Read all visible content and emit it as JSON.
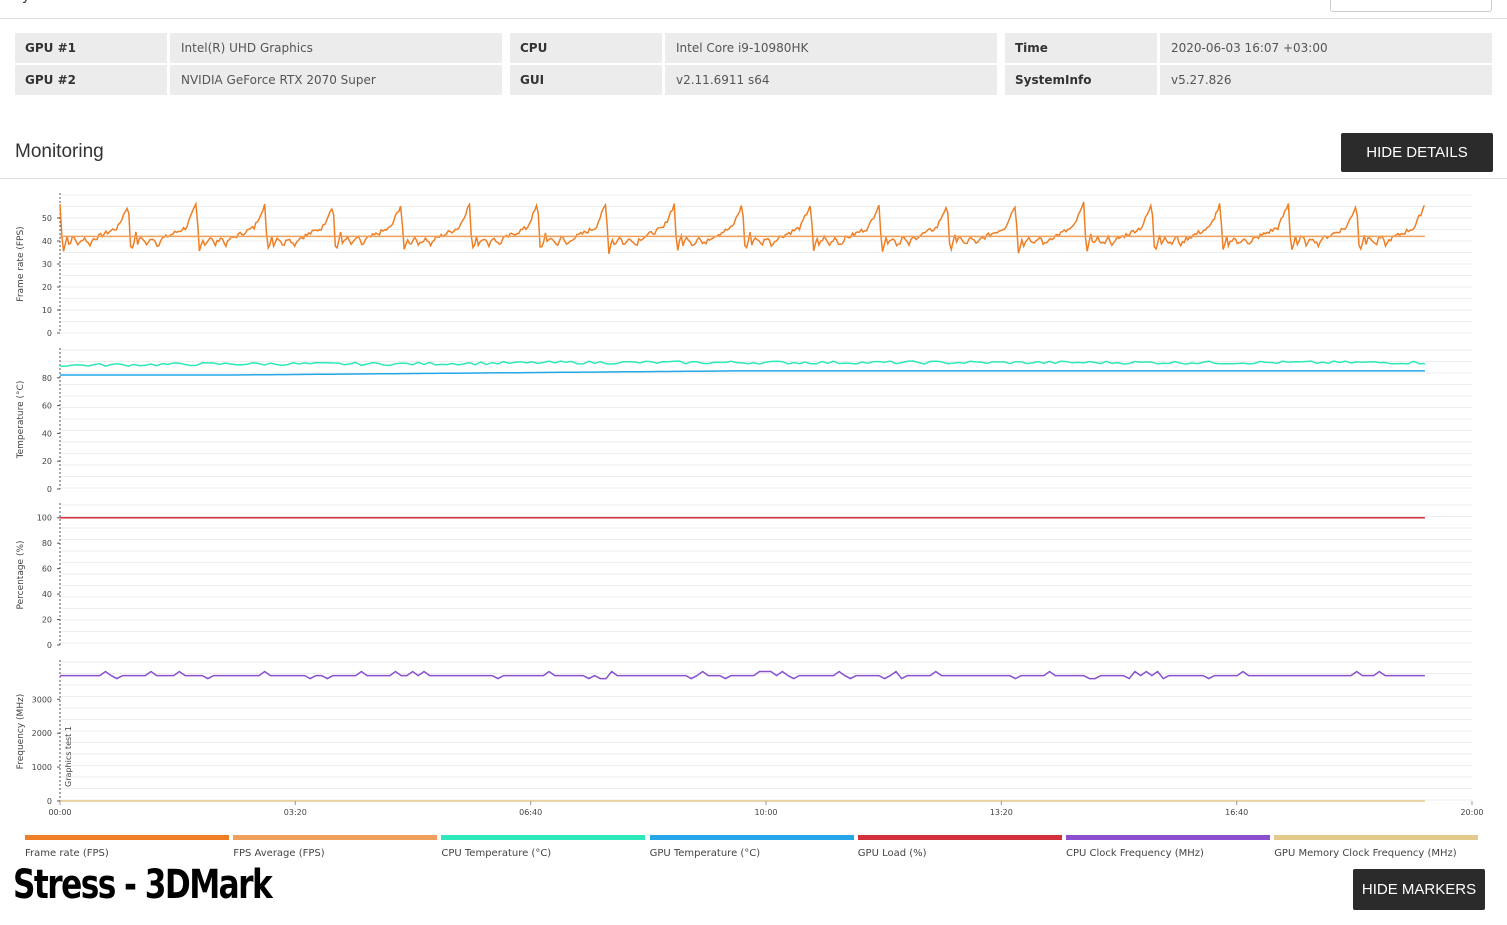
{
  "system_info": [
    [
      {
        "key": "GPU #1",
        "value": "Intel(R) UHD Graphics"
      },
      {
        "key": "CPU",
        "value": "Intel Core i9-10980HK"
      },
      {
        "key": "Time",
        "value": "2020-06-03 16:07 +03:00"
      }
    ],
    [
      {
        "key": "GPU #2",
        "value": "NVIDIA GeForce RTX 2070 Super"
      },
      {
        "key": "GUI",
        "value": "v2.11.6911 s64"
      },
      {
        "key": "SystemInfo",
        "value": "v5.27.826"
      }
    ]
  ],
  "monitoring": {
    "title": "Monitoring",
    "hide_details_label": "HIDE DETAILS",
    "hide_markers_label": "HIDE MARKERS"
  },
  "caption": "Stress - 3DMark",
  "colors": {
    "frame_rate": "#ee7f24",
    "fps_average": "#f0a05c",
    "cpu_temp": "#2ee8b9",
    "gpu_temp": "#25a6e8",
    "gpu_load": "#d2303a",
    "cpu_clock": "#8b4fd0",
    "gpu_mem_clock": "#e3c98c"
  },
  "chart_data": {
    "type": "line",
    "x_ticks": [
      "00:00",
      "03:20",
      "06:40",
      "10:00",
      "13:20",
      "16:40",
      "20:00"
    ],
    "x_range_seconds": [
      0,
      1200
    ],
    "data_end_seconds": 1160,
    "marker": "Graphics test 1",
    "grid": true,
    "panels": [
      {
        "ylabel": "Frame rate (FPS)",
        "yticks": [
          0,
          10,
          20,
          30,
          40,
          50
        ],
        "ylim": [
          0,
          60
        ],
        "series": [
          {
            "name": "Frame rate (FPS)",
            "color_key": "frame_rate",
            "baseline": 41,
            "oscillation": {
              "period_seconds": 58,
              "min": 35,
              "max": 56
            }
          },
          {
            "name": "FPS Average (FPS)",
            "color_key": "fps_average",
            "values": [
              42
            ]
          }
        ]
      },
      {
        "ylabel": "Temperature (°C)",
        "yticks": [
          0,
          20,
          40,
          60,
          80
        ],
        "ylim": [
          0,
          100
        ],
        "series": [
          {
            "name": "CPU Temperature (°C)",
            "color_key": "cpu_temp",
            "values": [
              89,
              90,
              90,
              91,
              91,
              91,
              91,
              91,
              91
            ]
          },
          {
            "name": "GPU Temperature (°C)",
            "color_key": "gpu_temp",
            "values": [
              82,
              82,
              83,
              84,
              85,
              85,
              85,
              85,
              85
            ]
          }
        ]
      },
      {
        "ylabel": "Percentage (%)",
        "yticks": [
          0,
          20,
          40,
          60,
          80,
          100
        ],
        "ylim": [
          0,
          110
        ],
        "series": [
          {
            "name": "GPU Load (%)",
            "color_key": "gpu_load",
            "values": [
              100
            ]
          }
        ]
      },
      {
        "ylabel": "Frequency (MHz)",
        "yticks": [
          0,
          1000,
          2000,
          3000
        ],
        "ylim": [
          0,
          4100
        ],
        "series": [
          {
            "name": "CPU Clock Frequency (MHz)",
            "color_key": "cpu_clock",
            "values": [
              3700
            ]
          },
          {
            "name": "GPU Memory Clock Frequency (MHz)",
            "color_key": "gpu_mem_clock",
            "values": [
              0
            ]
          }
        ]
      }
    ],
    "legend": [
      {
        "label": "Frame rate (FPS)",
        "color_key": "frame_rate"
      },
      {
        "label": "FPS Average (FPS)",
        "color_key": "fps_average"
      },
      {
        "label": "CPU Temperature (°C)",
        "color_key": "cpu_temp"
      },
      {
        "label": "GPU Temperature (°C)",
        "color_key": "gpu_temp"
      },
      {
        "label": "GPU Load (%)",
        "color_key": "gpu_load"
      },
      {
        "label": "CPU Clock Frequency (MHz)",
        "color_key": "cpu_clock"
      },
      {
        "label": "GPU Memory Clock Frequency (MHz)",
        "color_key": "gpu_mem_clock"
      }
    ],
    "legend_position": "bottom"
  }
}
